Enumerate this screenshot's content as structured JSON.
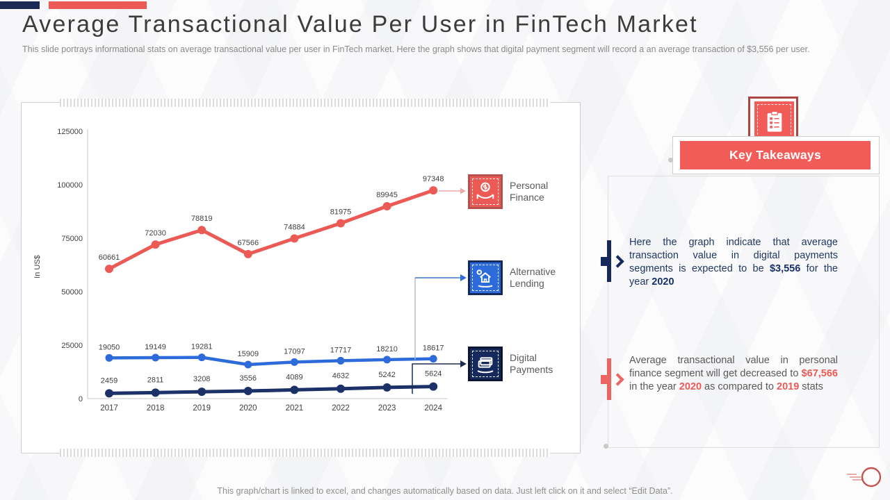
{
  "slide": {
    "title": "Average Transactional Value Per User in FinTech Market",
    "subtitle": "This slide portrays informational stats on average transactional value per user in FinTech market. Here the graph shows that digital payment segment will record a an average transaction of $3,556 per user.",
    "footer": "This graph/chart is linked to excel, and changes automatically based on data. Just left click on it and select “Edit Data”."
  },
  "chart_data": {
    "type": "line",
    "x": [
      "2017",
      "2018",
      "2019",
      "2020",
      "2021",
      "2022",
      "2023",
      "2024"
    ],
    "ylabel": "In US$",
    "ylim": [
      0,
      125000
    ],
    "yticks": [
      0,
      25000,
      50000,
      75000,
      100000,
      125000
    ],
    "grid": false,
    "data_labels": true,
    "series": [
      {
        "name": "Personal Finance",
        "color": "#ec5a56",
        "values": [
          60661,
          72030,
          78819,
          67566,
          74884,
          81975,
          89945,
          97348
        ]
      },
      {
        "name": "Alternative Lending",
        "color": "#2d6bdb",
        "values": [
          19050,
          19149,
          19281,
          15909,
          17097,
          17717,
          18210,
          18617
        ]
      },
      {
        "name": "Digital Payments",
        "color": "#1b3168",
        "values": [
          2459,
          2811,
          3208,
          3556,
          4089,
          4632,
          5242,
          5624
        ]
      }
    ]
  },
  "legend": [
    {
      "label": "Personal Finance",
      "icon": "hands-holding-money-icon",
      "bg": "#ec5a56"
    },
    {
      "label": "Alternative Lending",
      "icon": "house-lending-icon",
      "bg": "#2d6bdb"
    },
    {
      "label": "Digital Payments",
      "icon": "card-payment-hand-icon",
      "bg": "#16295c"
    }
  ],
  "key_takeaways": {
    "header": "Key Takeaways",
    "items": [
      {
        "theme": "navy",
        "segments": [
          {
            "t": "Here the graph indicate that average transaction value in digital payments segments is expected to be "
          },
          {
            "t": "$3,556",
            "b": true
          },
          {
            "t": " for the year "
          },
          {
            "t": "2020",
            "b": true
          }
        ]
      },
      {
        "theme": "red",
        "segments": [
          {
            "t": "Average transactional value in personal finance segment will get decreased to "
          },
          {
            "t": "$67,566",
            "b": true
          },
          {
            "t": " in the year "
          },
          {
            "t": "2020",
            "b": true
          },
          {
            "t": " as compared to "
          },
          {
            "t": "2019",
            "b": true
          },
          {
            "t": " stats"
          }
        ]
      }
    ]
  },
  "colors": {
    "accent_red": "#ec5a56",
    "accent_blue": "#2d6bdb",
    "accent_navy": "#16295c",
    "axis_gray": "#c4c4c4",
    "text_dark": "#3c3c3c",
    "text_muted": "#8a8a8a"
  }
}
